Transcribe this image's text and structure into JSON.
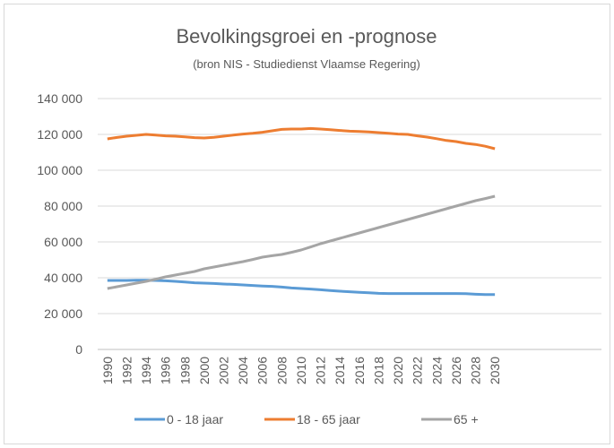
{
  "chart_data": {
    "type": "line",
    "title": "Bevolkingsgroei en -prognose",
    "subtitle": "(bron NIS - Studiedienst Vlaamse Regering)",
    "x": [
      1990,
      1991,
      1992,
      1993,
      1994,
      1995,
      1996,
      1997,
      1998,
      1999,
      2000,
      2001,
      2002,
      2003,
      2004,
      2005,
      2006,
      2007,
      2008,
      2009,
      2010,
      2011,
      2012,
      2013,
      2014,
      2015,
      2016,
      2017,
      2018,
      2019,
      2020,
      2021,
      2022,
      2023,
      2024,
      2025,
      2026,
      2027,
      2028,
      2029,
      2030
    ],
    "xlim": [
      1989,
      2041
    ],
    "xticks": [
      1990,
      1992,
      1994,
      1996,
      1998,
      2000,
      2002,
      2004,
      2006,
      2008,
      2010,
      2012,
      2014,
      2016,
      2018,
      2020,
      2022,
      2024,
      2026,
      2028,
      2030
    ],
    "ylim": [
      0,
      140000
    ],
    "yticks": [
      0,
      {
        "value": 20000,
        "label": "20 000"
      },
      {
        "value": 40000,
        "label": "40 000"
      },
      {
        "value": 60000,
        "label": "60 000"
      },
      {
        "value": 80000,
        "label": "80 000"
      },
      {
        "value": 100000,
        "label": "100 000"
      },
      {
        "value": 120000,
        "label": "120 000"
      },
      {
        "value": 140000,
        "label": "140 000"
      }
    ],
    "grid": true,
    "legend": "bottom",
    "series": [
      {
        "name": "0 - 18 jaar",
        "color": "#5b9bd5",
        "values": [
          38500,
          38500,
          38500,
          38600,
          38600,
          38500,
          38300,
          38000,
          37600,
          37200,
          37000,
          36800,
          36500,
          36300,
          36000,
          35700,
          35400,
          35200,
          34800,
          34300,
          34000,
          33700,
          33300,
          32900,
          32500,
          32200,
          31900,
          31600,
          31300,
          31200,
          31200,
          31200,
          31200,
          31200,
          31200,
          31200,
          31200,
          31100,
          30800,
          30600,
          30600
        ]
      },
      {
        "name": "18 - 65 jaar",
        "color": "#ed7d31",
        "values": [
          117500,
          118300,
          119000,
          119500,
          120000,
          119600,
          119200,
          119000,
          118600,
          118200,
          118000,
          118400,
          119000,
          119600,
          120200,
          120600,
          121200,
          122000,
          122800,
          123000,
          123000,
          123300,
          123000,
          122600,
          122200,
          121800,
          121600,
          121400,
          121000,
          120600,
          120200,
          120000,
          119200,
          118500,
          117600,
          116600,
          116000,
          115000,
          114400,
          113400,
          112000
        ]
      },
      {
        "name": "65 +",
        "color": "#a5a5a5",
        "values": [
          34000,
          35000,
          36000,
          37000,
          38000,
          39200,
          40500,
          41500,
          42500,
          43500,
          45000,
          46000,
          47000,
          48000,
          49000,
          50200,
          51500,
          52300,
          53000,
          54200,
          55500,
          57200,
          59000,
          60500,
          62000,
          63500,
          65000,
          66500,
          68000,
          69500,
          71000,
          72500,
          74000,
          75500,
          77000,
          78500,
          80000,
          81500,
          83000,
          84200,
          85500
        ]
      }
    ]
  }
}
